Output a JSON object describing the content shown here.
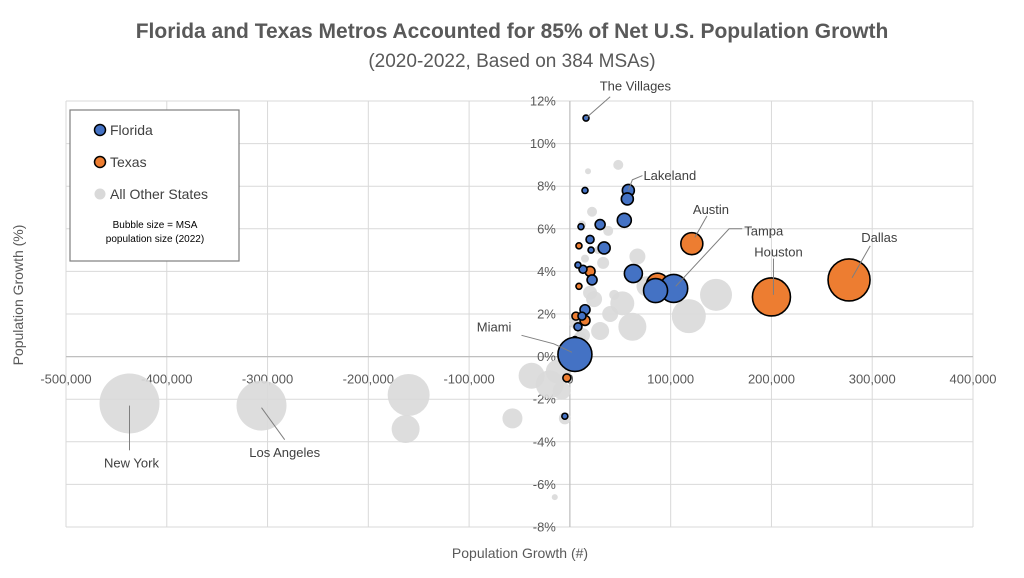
{
  "chart_data": {
    "type": "scatter",
    "title": "Florida and Texas Metros Accounted for 85% of Net U.S. Population Growth",
    "subtitle": "(2020-2022, Based on 384 MSAs)",
    "xlabel": "Population Growth (#)",
    "ylabel": "Population Growth (%)",
    "xlim": [
      -500000,
      400000
    ],
    "ylim": [
      -8,
      12
    ],
    "x_ticks": [
      -500000,
      -400000,
      -300000,
      -200000,
      -100000,
      0,
      100000,
      200000,
      300000,
      400000
    ],
    "x_tick_labels": [
      "-500,000",
      "-400,000",
      "-300,000",
      "-200,000",
      "-100,000",
      "0",
      "100,000",
      "200,000",
      "300,000",
      "400,000"
    ],
    "y_ticks": [
      -8,
      -6,
      -4,
      -2,
      0,
      2,
      4,
      6,
      8,
      10,
      12
    ],
    "y_tick_labels": [
      "-8%",
      "-6%",
      "-4%",
      "-2%",
      "0%",
      "2%",
      "4%",
      "6%",
      "8%",
      "10%",
      "12%"
    ],
    "grid": true,
    "legend": {
      "position": "top-left",
      "entries": [
        {
          "name": "Florida",
          "color": "#4472c4"
        },
        {
          "name": "Texas",
          "color": "#ed7d31"
        },
        {
          "name": "All Other States",
          "color": "#d9d9d9"
        }
      ],
      "note_lines": [
        "Bubble size = MSA",
        "population size (2022)"
      ]
    },
    "bubble_size_note": "Bubble size = MSA population size (2022)",
    "series": [
      {
        "name": "All Other States",
        "color": "#d9d9d9",
        "points": [
          {
            "x": -437000,
            "y": -2.2,
            "r": 30
          },
          {
            "x": -306000,
            "y": -2.3,
            "r": 25
          },
          {
            "x": -160000,
            "y": -1.8,
            "r": 21
          },
          {
            "x": -163000,
            "y": -3.4,
            "r": 14
          },
          {
            "x": -57000,
            "y": -2.9,
            "r": 10
          },
          {
            "x": -38000,
            "y": -0.9,
            "r": 13
          },
          {
            "x": -20000,
            "y": -1.3,
            "r": 14
          },
          {
            "x": -12000,
            "y": -0.7,
            "r": 12
          },
          {
            "x": -8000,
            "y": -1.6,
            "r": 9
          },
          {
            "x": -5000,
            "y": -2.9,
            "r": 6
          },
          {
            "x": -15000,
            "y": -6.6,
            "r": 3
          },
          {
            "x": 118000,
            "y": 1.9,
            "r": 17
          },
          {
            "x": 145000,
            "y": 2.9,
            "r": 16
          },
          {
            "x": 62000,
            "y": 1.4,
            "r": 14
          },
          {
            "x": 52000,
            "y": 2.5,
            "r": 12
          },
          {
            "x": 76000,
            "y": 3.3,
            "r": 10
          },
          {
            "x": 67000,
            "y": 4.7,
            "r": 8
          },
          {
            "x": 30000,
            "y": 1.2,
            "r": 9
          },
          {
            "x": 24000,
            "y": 2.7,
            "r": 8
          },
          {
            "x": 40000,
            "y": 2.0,
            "r": 8
          },
          {
            "x": 20000,
            "y": 3.0,
            "r": 7
          },
          {
            "x": 33000,
            "y": 4.4,
            "r": 6
          },
          {
            "x": 48000,
            "y": 9.0,
            "r": 5
          },
          {
            "x": 22000,
            "y": 6.8,
            "r": 5
          },
          {
            "x": 38000,
            "y": 5.9,
            "r": 5
          },
          {
            "x": 13000,
            "y": 1.0,
            "r": 7
          },
          {
            "x": 10000,
            "y": 0.9,
            "r": 6
          },
          {
            "x": 5000,
            "y": 1.6,
            "r": 6
          },
          {
            "x": 15000,
            "y": 4.6,
            "r": 4
          },
          {
            "x": 18000,
            "y": 8.7,
            "r": 3
          },
          {
            "x": 12000,
            "y": 6.2,
            "r": 4
          },
          {
            "x": 28000,
            "y": 5.0,
            "r": 4
          },
          {
            "x": 44000,
            "y": 2.9,
            "r": 5
          },
          {
            "x": -3000,
            "y": 0.5,
            "r": 5
          }
        ]
      },
      {
        "name": "Texas",
        "color": "#ed7d31",
        "points": [
          {
            "x": 277000,
            "y": 3.6,
            "r": 21
          },
          {
            "x": 200000,
            "y": 2.8,
            "r": 19
          },
          {
            "x": 121000,
            "y": 5.3,
            "r": 11
          },
          {
            "x": 87000,
            "y": 3.4,
            "r": 11
          },
          {
            "x": 20000,
            "y": 4.0,
            "r": 5
          },
          {
            "x": 15000,
            "y": 1.7,
            "r": 5
          },
          {
            "x": 6000,
            "y": 1.9,
            "r": 4
          },
          {
            "x": 4000,
            "y": 0.1,
            "r": 5
          },
          {
            "x": 1000,
            "y": -0.1,
            "r": 5
          },
          {
            "x": -3000,
            "y": -1.0,
            "r": 4
          },
          {
            "x": 9000,
            "y": 3.3,
            "r": 3
          },
          {
            "x": 9000,
            "y": 5.2,
            "r": 3
          },
          {
            "x": 5000,
            "y": 0.8,
            "r": 3
          }
        ]
      },
      {
        "name": "Florida",
        "color": "#4472c4",
        "points": [
          {
            "x": 5000,
            "y": 0.1,
            "r": 17
          },
          {
            "x": 103000,
            "y": 3.2,
            "r": 14
          },
          {
            "x": 85000,
            "y": 3.1,
            "r": 12
          },
          {
            "x": 63000,
            "y": 3.9,
            "r": 9
          },
          {
            "x": 58000,
            "y": 7.8,
            "r": 6
          },
          {
            "x": 57000,
            "y": 7.4,
            "r": 6
          },
          {
            "x": 54000,
            "y": 6.4,
            "r": 7
          },
          {
            "x": 30000,
            "y": 6.2,
            "r": 5
          },
          {
            "x": 34000,
            "y": 5.1,
            "r": 6
          },
          {
            "x": 22000,
            "y": 3.6,
            "r": 5
          },
          {
            "x": 20000,
            "y": 5.5,
            "r": 4
          },
          {
            "x": 15000,
            "y": 2.2,
            "r": 5
          },
          {
            "x": 13000,
            "y": 4.1,
            "r": 4
          },
          {
            "x": 12000,
            "y": 1.9,
            "r": 4
          },
          {
            "x": 8000,
            "y": 1.4,
            "r": 4
          },
          {
            "x": 11000,
            "y": 6.1,
            "r": 3
          },
          {
            "x": 15000,
            "y": 7.8,
            "r": 3
          },
          {
            "x": 16000,
            "y": 11.2,
            "r": 3
          },
          {
            "x": 21000,
            "y": 5.0,
            "r": 3
          },
          {
            "x": 8000,
            "y": 4.3,
            "r": 3
          },
          {
            "x": -5000,
            "y": -2.8,
            "r": 3
          }
        ]
      }
    ],
    "annotations": [
      {
        "text": "The Villages",
        "label_x": 65000,
        "label_y": 12.7,
        "anchor": "middle",
        "line": [
          [
            40000,
            12.2
          ],
          [
            16000,
            11.2
          ]
        ]
      },
      {
        "text": "Lakeland",
        "label_x": 73000,
        "label_y": 8.5,
        "anchor": "start",
        "line": [
          [
            72000,
            8.5
          ],
          [
            62000,
            8.3
          ],
          [
            58000,
            7.8
          ]
        ]
      },
      {
        "text": "Austin",
        "label_x": 140000,
        "label_y": 6.9,
        "anchor": "middle",
        "line": [
          [
            136000,
            6.6
          ],
          [
            124000,
            5.6
          ]
        ]
      },
      {
        "text": "Tampa",
        "label_x": 173000,
        "label_y": 5.9,
        "anchor": "start",
        "line": [
          [
            171000,
            6.0
          ],
          [
            158000,
            6.0
          ],
          [
            105000,
            3.3
          ]
        ]
      },
      {
        "text": "Houston",
        "label_x": 207000,
        "label_y": 4.9,
        "anchor": "middle",
        "line": [
          [
            202000,
            4.6
          ],
          [
            202000,
            2.9
          ]
        ]
      },
      {
        "text": "Dallas",
        "label_x": 307000,
        "label_y": 5.6,
        "anchor": "middle",
        "line": [
          [
            298000,
            5.2
          ],
          [
            280000,
            3.7
          ]
        ]
      },
      {
        "text": "Miami",
        "label_x": -58000,
        "label_y": 1.4,
        "anchor": "end",
        "line": [
          [
            -48000,
            1.0
          ],
          [
            -16000,
            0.6
          ],
          [
            2000,
            0.2
          ]
        ]
      },
      {
        "text": "New York",
        "label_x": -435000,
        "label_y": -5.0,
        "anchor": "middle",
        "line": [
          [
            -437000,
            -4.4
          ],
          [
            -437000,
            -2.3
          ]
        ]
      },
      {
        "text": "Los Angeles",
        "label_x": -283000,
        "label_y": -4.5,
        "anchor": "middle",
        "line": [
          [
            -283000,
            -3.9
          ],
          [
            -306000,
            -2.4
          ]
        ]
      }
    ]
  }
}
